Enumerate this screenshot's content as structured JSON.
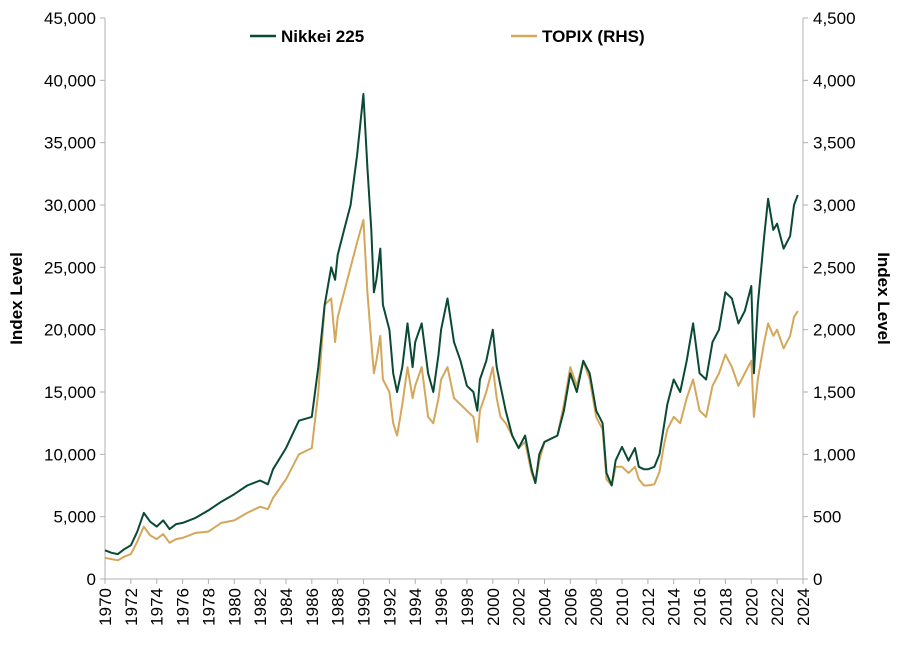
{
  "chart_data": {
    "type": "line",
    "title": "",
    "ylabel": "Index Level",
    "y2label": "Index Level",
    "ylim": [
      0,
      45000
    ],
    "y2lim": [
      0,
      4500
    ],
    "xlim": [
      1970,
      2024
    ],
    "x_ticks": [
      "1970",
      "1972",
      "1974",
      "1976",
      "1978",
      "1980",
      "1982",
      "1984",
      "1986",
      "1988",
      "1990",
      "1992",
      "1994",
      "1996",
      "1998",
      "2000",
      "2002",
      "2004",
      "2006",
      "2008",
      "2010",
      "2012",
      "2014",
      "2016",
      "2018",
      "2020",
      "2022",
      "2024"
    ],
    "y_ticks": [
      "0",
      "5,000",
      "10,000",
      "15,000",
      "20,000",
      "25,000",
      "30,000",
      "35,000",
      "40,000",
      "45,000"
    ],
    "y2_ticks": [
      "0",
      "500",
      "1,000",
      "1,500",
      "2,000",
      "2,500",
      "3,000",
      "3,500",
      "4,000",
      "4,500"
    ],
    "grid": false,
    "legend_position": "top",
    "series": [
      {
        "name": "Nikkei 225",
        "axis": "left",
        "color": "#0a4a35",
        "x": [
          1970.0,
          1970.5,
          1971.0,
          1971.5,
          1972.0,
          1972.5,
          1973.0,
          1973.5,
          1974.0,
          1974.5,
          1975.0,
          1975.5,
          1976.0,
          1977.0,
          1978.0,
          1979.0,
          1980.0,
          1981.0,
          1982.0,
          1982.6,
          1983.0,
          1984.0,
          1985.0,
          1986.0,
          1986.5,
          1987.0,
          1987.5,
          1987.8,
          1988.0,
          1988.5,
          1989.0,
          1989.5,
          1989.99,
          1990.3,
          1990.6,
          1990.8,
          1991.0,
          1991.3,
          1991.5,
          1992.0,
          1992.3,
          1992.6,
          1993.0,
          1993.4,
          1993.8,
          1994.0,
          1994.5,
          1995.0,
          1995.4,
          1995.8,
          1996.0,
          1996.5,
          1997.0,
          1997.5,
          1998.0,
          1998.5,
          1998.8,
          1999.0,
          1999.5,
          2000.0,
          2000.3,
          2000.6,
          2001.0,
          2001.5,
          2002.0,
          2002.5,
          2003.0,
          2003.3,
          2003.6,
          2004.0,
          2005.0,
          2005.5,
          2006.0,
          2006.5,
          2007.0,
          2007.5,
          2008.0,
          2008.5,
          2008.8,
          2009.2,
          2009.5,
          2010.0,
          2010.5,
          2011.0,
          2011.3,
          2011.7,
          2012.0,
          2012.5,
          2012.9,
          2013.2,
          2013.5,
          2014.0,
          2014.5,
          2015.0,
          2015.5,
          2016.0,
          2016.5,
          2017.0,
          2017.5,
          2018.0,
          2018.5,
          2019.0,
          2019.5,
          2020.0,
          2020.2,
          2020.5,
          2021.0,
          2021.3,
          2021.7,
          2022.0,
          2022.5,
          2023.0,
          2023.3,
          2023.6
        ],
        "values": [
          2300,
          2100,
          2000,
          2400,
          2700,
          3800,
          5300,
          4600,
          4200,
          4700,
          4000,
          4400,
          4500,
          4900,
          5500,
          6200,
          6800,
          7500,
          7900,
          7600,
          8800,
          10500,
          12700,
          13000,
          17000,
          22000,
          25000,
          24000,
          26000,
          28000,
          30000,
          34000,
          38900,
          33000,
          28000,
          23000,
          24000,
          26500,
          22000,
          20000,
          16500,
          15000,
          17000,
          20500,
          17000,
          19000,
          20500,
          16500,
          15000,
          18000,
          20000,
          22500,
          19000,
          17500,
          15500,
          15000,
          13500,
          16000,
          17500,
          20000,
          17000,
          15500,
          13500,
          11500,
          10500,
          11500,
          8800,
          7700,
          10000,
          11000,
          11500,
          13500,
          16500,
          15000,
          17500,
          16500,
          13500,
          12500,
          8500,
          7500,
          9500,
          10600,
          9500,
          10500,
          9000,
          8800,
          8800,
          9000,
          10000,
          12000,
          14000,
          16000,
          15000,
          17500,
          20500,
          16500,
          16000,
          19000,
          20000,
          23000,
          22500,
          20500,
          21500,
          23500,
          16500,
          22000,
          27500,
          30500,
          28000,
          28500,
          26500,
          27500,
          30000,
          30800
        ]
      },
      {
        "name": "TOPIX (RHS)",
        "axis": "right",
        "color": "#d4a75a",
        "x": [
          1970.0,
          1970.5,
          1971.0,
          1971.5,
          1972.0,
          1972.5,
          1973.0,
          1973.5,
          1974.0,
          1974.5,
          1975.0,
          1975.5,
          1976.0,
          1977.0,
          1978.0,
          1979.0,
          1980.0,
          1981.0,
          1982.0,
          1982.6,
          1983.0,
          1984.0,
          1985.0,
          1986.0,
          1986.5,
          1987.0,
          1987.5,
          1987.8,
          1988.0,
          1988.5,
          1989.0,
          1989.5,
          1989.99,
          1990.3,
          1990.6,
          1990.8,
          1991.0,
          1991.3,
          1991.5,
          1992.0,
          1992.3,
          1992.6,
          1993.0,
          1993.4,
          1993.8,
          1994.0,
          1994.5,
          1995.0,
          1995.4,
          1995.8,
          1996.0,
          1996.5,
          1997.0,
          1997.5,
          1998.0,
          1998.5,
          1998.8,
          1999.0,
          1999.5,
          2000.0,
          2000.3,
          2000.6,
          2001.0,
          2001.5,
          2002.0,
          2002.5,
          2003.0,
          2003.3,
          2003.6,
          2004.0,
          2005.0,
          2005.5,
          2006.0,
          2006.5,
          2007.0,
          2007.5,
          2008.0,
          2008.5,
          2008.8,
          2009.2,
          2009.5,
          2010.0,
          2010.5,
          2011.0,
          2011.3,
          2011.7,
          2012.0,
          2012.5,
          2012.9,
          2013.2,
          2013.5,
          2014.0,
          2014.5,
          2015.0,
          2015.5,
          2016.0,
          2016.5,
          2017.0,
          2017.5,
          2018.0,
          2018.5,
          2019.0,
          2019.5,
          2020.0,
          2020.2,
          2020.5,
          2021.0,
          2021.3,
          2021.7,
          2022.0,
          2022.5,
          2023.0,
          2023.3,
          2023.6
        ],
        "values": [
          170,
          160,
          150,
          180,
          200,
          300,
          420,
          350,
          320,
          360,
          290,
          320,
          330,
          370,
          380,
          450,
          470,
          530,
          580,
          560,
          650,
          800,
          1000,
          1050,
          1500,
          2200,
          2250,
          1900,
          2100,
          2300,
          2500,
          2700,
          2880,
          2300,
          1900,
          1650,
          1750,
          1950,
          1600,
          1500,
          1250,
          1150,
          1400,
          1700,
          1450,
          1550,
          1700,
          1300,
          1250,
          1450,
          1600,
          1700,
          1450,
          1400,
          1350,
          1300,
          1100,
          1350,
          1500,
          1700,
          1450,
          1300,
          1250,
          1150,
          1050,
          1100,
          850,
          770,
          950,
          1100,
          1150,
          1400,
          1700,
          1550,
          1750,
          1600,
          1300,
          1200,
          800,
          750,
          900,
          900,
          850,
          900,
          800,
          750,
          750,
          760,
          860,
          1050,
          1200,
          1300,
          1250,
          1450,
          1600,
          1350,
          1300,
          1550,
          1650,
          1800,
          1700,
          1550,
          1650,
          1750,
          1300,
          1600,
          1900,
          2050,
          1950,
          2000,
          1850,
          1950,
          2100,
          2150
        ]
      }
    ]
  }
}
